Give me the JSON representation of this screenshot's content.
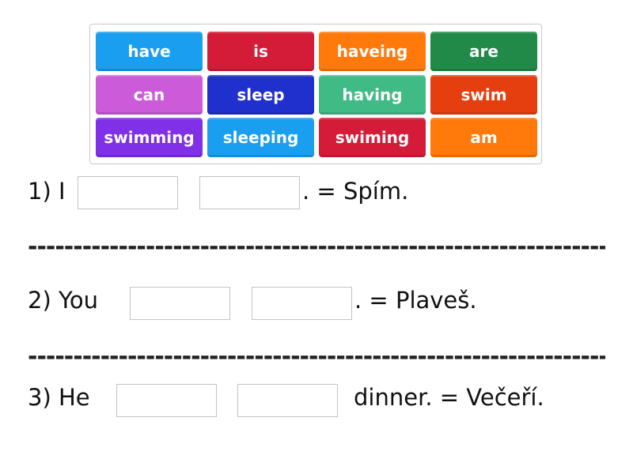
{
  "word_bank": [
    {
      "label": "have",
      "color": "#1a9ff0"
    },
    {
      "label": "is",
      "color": "#d41c38"
    },
    {
      "label": "haveing",
      "color": "#ff7a0a"
    },
    {
      "label": "are",
      "color": "#218a48"
    },
    {
      "label": "can",
      "color": "#cc5bd9"
    },
    {
      "label": "sleep",
      "color": "#2030cc"
    },
    {
      "label": "having",
      "color": "#41bb85"
    },
    {
      "label": "swim",
      "color": "#e53f10"
    },
    {
      "label": "swimming",
      "color": "#8030e6"
    },
    {
      "label": "sleeping",
      "color": "#1a9ff0"
    },
    {
      "label": "swiming",
      "color": "#d41c38"
    },
    {
      "label": "am",
      "color": "#ff7a0a"
    }
  ],
  "sentences": [
    {
      "prefix": "1) I",
      "suffix": ". = Spím."
    },
    {
      "prefix": "2) You",
      "suffix": ". = Plaveš."
    },
    {
      "prefix": "3) He",
      "suffix": "dinner. = Večeří."
    }
  ],
  "separator": "------------------------------------------------------------------------------------------"
}
